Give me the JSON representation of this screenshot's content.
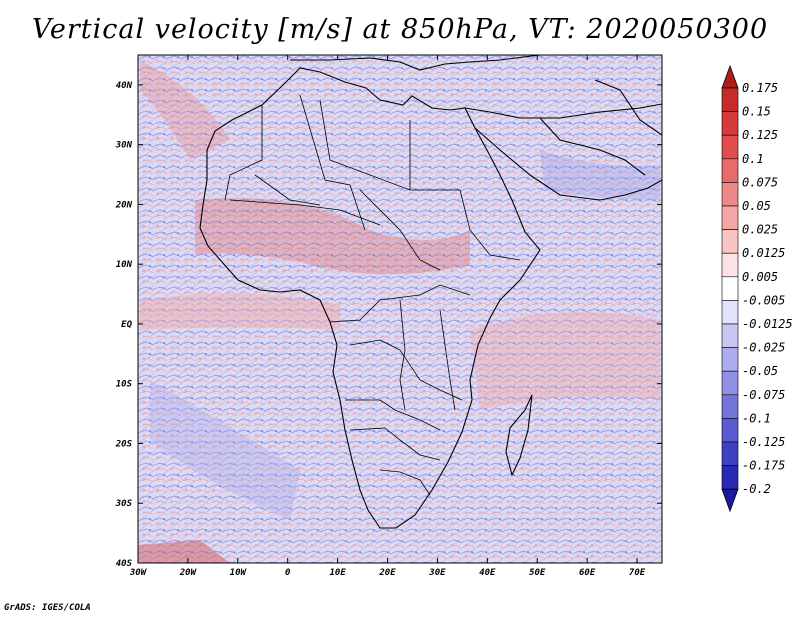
{
  "title": "Vertical velocity [m/s] at 850hPa, VT: 2020050300",
  "credit": "GrADS: IGES/COLA",
  "map": {
    "variable": "Vertical velocity",
    "units": "m/s",
    "level": "850hPa",
    "valid_time": "2020050300",
    "lon_range": [
      -30,
      75
    ],
    "lat_range": [
      -40,
      45
    ],
    "lon_ticks": [
      {
        "value": -30,
        "label": "30W"
      },
      {
        "value": -20,
        "label": "20W"
      },
      {
        "value": -10,
        "label": "10W"
      },
      {
        "value": 0,
        "label": "0"
      },
      {
        "value": 10,
        "label": "10E"
      },
      {
        "value": 20,
        "label": "20E"
      },
      {
        "value": 30,
        "label": "30E"
      },
      {
        "value": 40,
        "label": "40E"
      },
      {
        "value": 50,
        "label": "50E"
      },
      {
        "value": 60,
        "label": "60E"
      },
      {
        "value": 70,
        "label": "70E"
      }
    ],
    "lat_ticks": [
      {
        "value": 40,
        "label": "40N"
      },
      {
        "value": 30,
        "label": "30N"
      },
      {
        "value": 20,
        "label": "20N"
      },
      {
        "value": 10,
        "label": "10N"
      },
      {
        "value": 0,
        "label": "EQ"
      },
      {
        "value": -10,
        "label": "10S"
      },
      {
        "value": -20,
        "label": "20S"
      },
      {
        "value": -30,
        "label": "30S"
      },
      {
        "value": -40,
        "label": "40S"
      }
    ]
  },
  "colorbar": {
    "labels": [
      "0.175",
      "0.15",
      "0.125",
      "0.1",
      "0.075",
      "0.05",
      "0.025",
      "0.0125",
      "0.005",
      "-0.005",
      "-0.0125",
      "-0.025",
      "-0.05",
      "-0.075",
      "-0.1",
      "-0.125",
      "-0.175",
      "-0.2"
    ],
    "colors": [
      "#b01c1c",
      "#c62a2a",
      "#d63a3a",
      "#e24e4e",
      "#e86a6a",
      "#ee8888",
      "#f4a6a6",
      "#f8c4c4",
      "#fce2e2",
      "#ffffff",
      "#e2e2fa",
      "#c8c8f4",
      "#acacee",
      "#9090e6",
      "#7474dc",
      "#5a5ad2",
      "#4040c4",
      "#2828b4",
      "#1a1a9c"
    ]
  }
}
